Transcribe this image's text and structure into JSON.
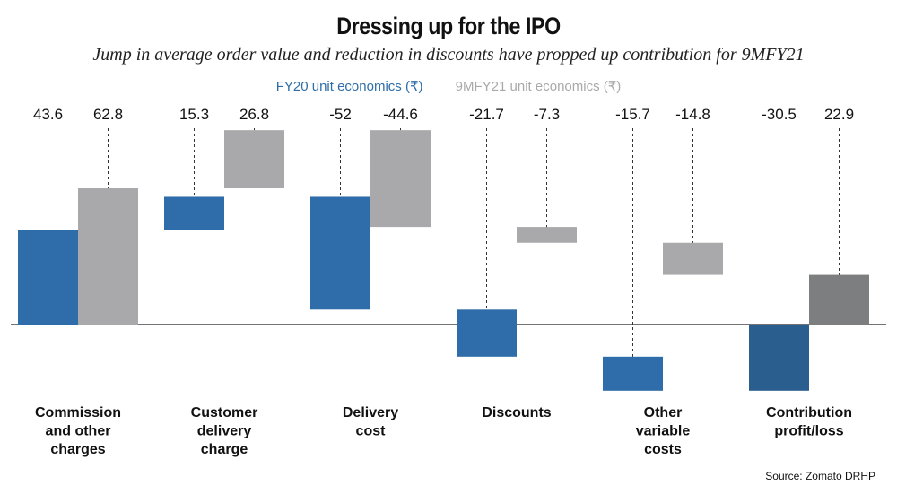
{
  "title": "Dressing up for the IPO",
  "subtitle": "Jump in average order value and reduction in discounts have propped up contribution for 9MFY21",
  "source": "Source: Zomato DRHP",
  "colors": {
    "fy20": "#2e6da9",
    "fy21": "#a9a9ab",
    "fy20_total": "#2a5e8f",
    "fy21_total": "#7d7e80",
    "legend_fy20_text": "#2e6da9",
    "legend_fy21_text": "#a9a9ab"
  },
  "chart_data": {
    "type": "bar",
    "subtype": "waterfall",
    "categories": [
      "Commission and other charges",
      "Customer delivery charge",
      "Delivery cost",
      "Discounts",
      "Other variable costs",
      "Contribution profit/loss"
    ],
    "category_label_lines": [
      [
        "Commission",
        "and other",
        "charges"
      ],
      [
        "Customer",
        "delivery",
        "charge"
      ],
      [
        "Delivery",
        "cost"
      ],
      [
        "Discounts"
      ],
      [
        "Other",
        "variable",
        "costs"
      ],
      [
        "Contribution",
        "profit/loss"
      ]
    ],
    "series": [
      {
        "name": "FY20 unit economics (₹)",
        "values": [
          43.6,
          15.3,
          -52,
          -21.7,
          -15.7,
          -30.5
        ],
        "labels": [
          "43.6",
          "15.3",
          "-52",
          "-21.7",
          "-15.7",
          "-30.5"
        ]
      },
      {
        "name": "9MFY21 unit economics (₹)",
        "values": [
          62.8,
          26.8,
          -44.6,
          -7.3,
          -14.8,
          22.9
        ],
        "labels": [
          "62.8",
          "26.8",
          "-44.6",
          "-7.3",
          "-14.8",
          "22.9"
        ]
      }
    ],
    "last_category_is_total": true,
    "axes_shown": false,
    "grid": false,
    "legend_position": "top"
  }
}
